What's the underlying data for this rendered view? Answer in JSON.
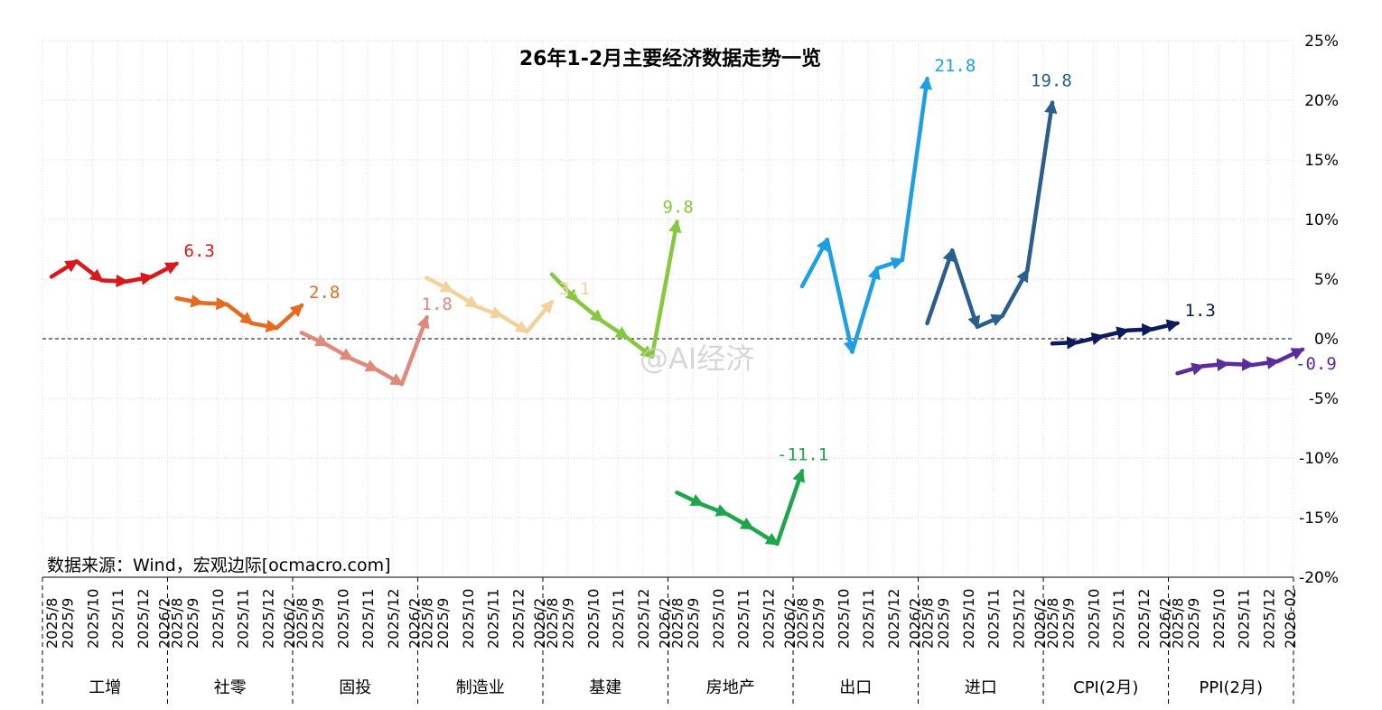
{
  "chart_data": {
    "type": "line",
    "title": "26年1-2月主要经济数据走势一览",
    "source_note": "数据来源：Wind，宏观边际[ocmacro.com]",
    "watermark": "@AI经济",
    "ylim": [
      -20,
      25
    ],
    "yticks": [
      25,
      20,
      15,
      10,
      5,
      0,
      -5,
      -10,
      -15,
      -20
    ],
    "ytick_labels": [
      "25%",
      "20%",
      "15%",
      "10%",
      "5%",
      "0%",
      "-5%",
      "-10%",
      "-15%",
      "-20%"
    ],
    "grid": true,
    "zero_line": "dashed",
    "series": [
      {
        "name": "工增",
        "color": "#d7191c",
        "dates": [
          "2025/8",
          "2025/9",
          "2025/10",
          "2025/11",
          "2025/12",
          "2026/2"
        ],
        "values": [
          5.2,
          6.5,
          4.9,
          4.8,
          5.2,
          6.3
        ],
        "end_label": "6.3"
      },
      {
        "name": "社零",
        "color": "#e66a1f",
        "dates": [
          "2025/8",
          "2025/9",
          "2025/10",
          "2025/11",
          "2025/12",
          "2026/2"
        ],
        "values": [
          3.4,
          3.0,
          2.9,
          1.3,
          0.9,
          2.8
        ],
        "end_label": "2.8"
      },
      {
        "name": "固投",
        "color": "#e0887a",
        "dates": [
          "2025/8",
          "2025/9",
          "2025/10",
          "2025/11",
          "2025/12",
          "2026/2"
        ],
        "values": [
          0.5,
          -0.5,
          -1.7,
          -2.6,
          -3.8,
          1.8
        ],
        "end_label": "1.8"
      },
      {
        "name": "制造业",
        "color": "#f1d29a",
        "dates": [
          "2025/8",
          "2025/9",
          "2025/10",
          "2025/11",
          "2025/12",
          "2026/2"
        ],
        "values": [
          5.1,
          4.0,
          2.7,
          1.9,
          0.6,
          3.1
        ],
        "end_label": "3.1"
      },
      {
        "name": "基建",
        "color": "#86c940",
        "dates": [
          "2025/8",
          "2025/9",
          "2025/10",
          "2025/11",
          "2025/12",
          "2026/2"
        ],
        "values": [
          5.4,
          3.2,
          1.5,
          0.1,
          -1.5,
          9.8
        ],
        "end_label": "9.8"
      },
      {
        "name": "房地产",
        "color": "#1ea64a",
        "dates": [
          "2025/8",
          "2025/9",
          "2025/10",
          "2025/11",
          "2025/12",
          "2026/2"
        ],
        "values": [
          -12.9,
          -13.9,
          -14.7,
          -15.9,
          -17.2,
          -11.1
        ],
        "end_label": "-11.1"
      },
      {
        "name": "出口",
        "color": "#1ca0e3",
        "dates": [
          "2025/8",
          "2025/9",
          "2025/10",
          "2025/11",
          "2025/12",
          "2026/2"
        ],
        "values": [
          4.4,
          8.3,
          -1.1,
          5.9,
          6.6,
          21.8
        ],
        "end_label": "21.8"
      },
      {
        "name": "进口",
        "color": "#2b5e8c",
        "dates": [
          "2025/8",
          "2025/9",
          "2025/10",
          "2025/11",
          "2025/12",
          "2026/2"
        ],
        "values": [
          1.3,
          7.4,
          1.0,
          1.9,
          5.7,
          19.8
        ],
        "end_label": "19.8"
      },
      {
        "name": "CPI(2月)",
        "color": "#0d1a5c",
        "dates": [
          "2025/8",
          "2025/9",
          "2025/10",
          "2025/11",
          "2025/12",
          "2026/2"
        ],
        "values": [
          -0.4,
          -0.3,
          0.2,
          0.7,
          0.8,
          1.3
        ],
        "end_label": "1.3"
      },
      {
        "name": "PPI(2月)",
        "color": "#5b2c9c",
        "dates": [
          "2025/8",
          "2025/9",
          "2025/10",
          "2025/11",
          "2025/12",
          "2026-02"
        ],
        "values": [
          -2.9,
          -2.3,
          -2.1,
          -2.2,
          -1.9,
          -0.9
        ],
        "end_label": "-0.9"
      }
    ]
  }
}
